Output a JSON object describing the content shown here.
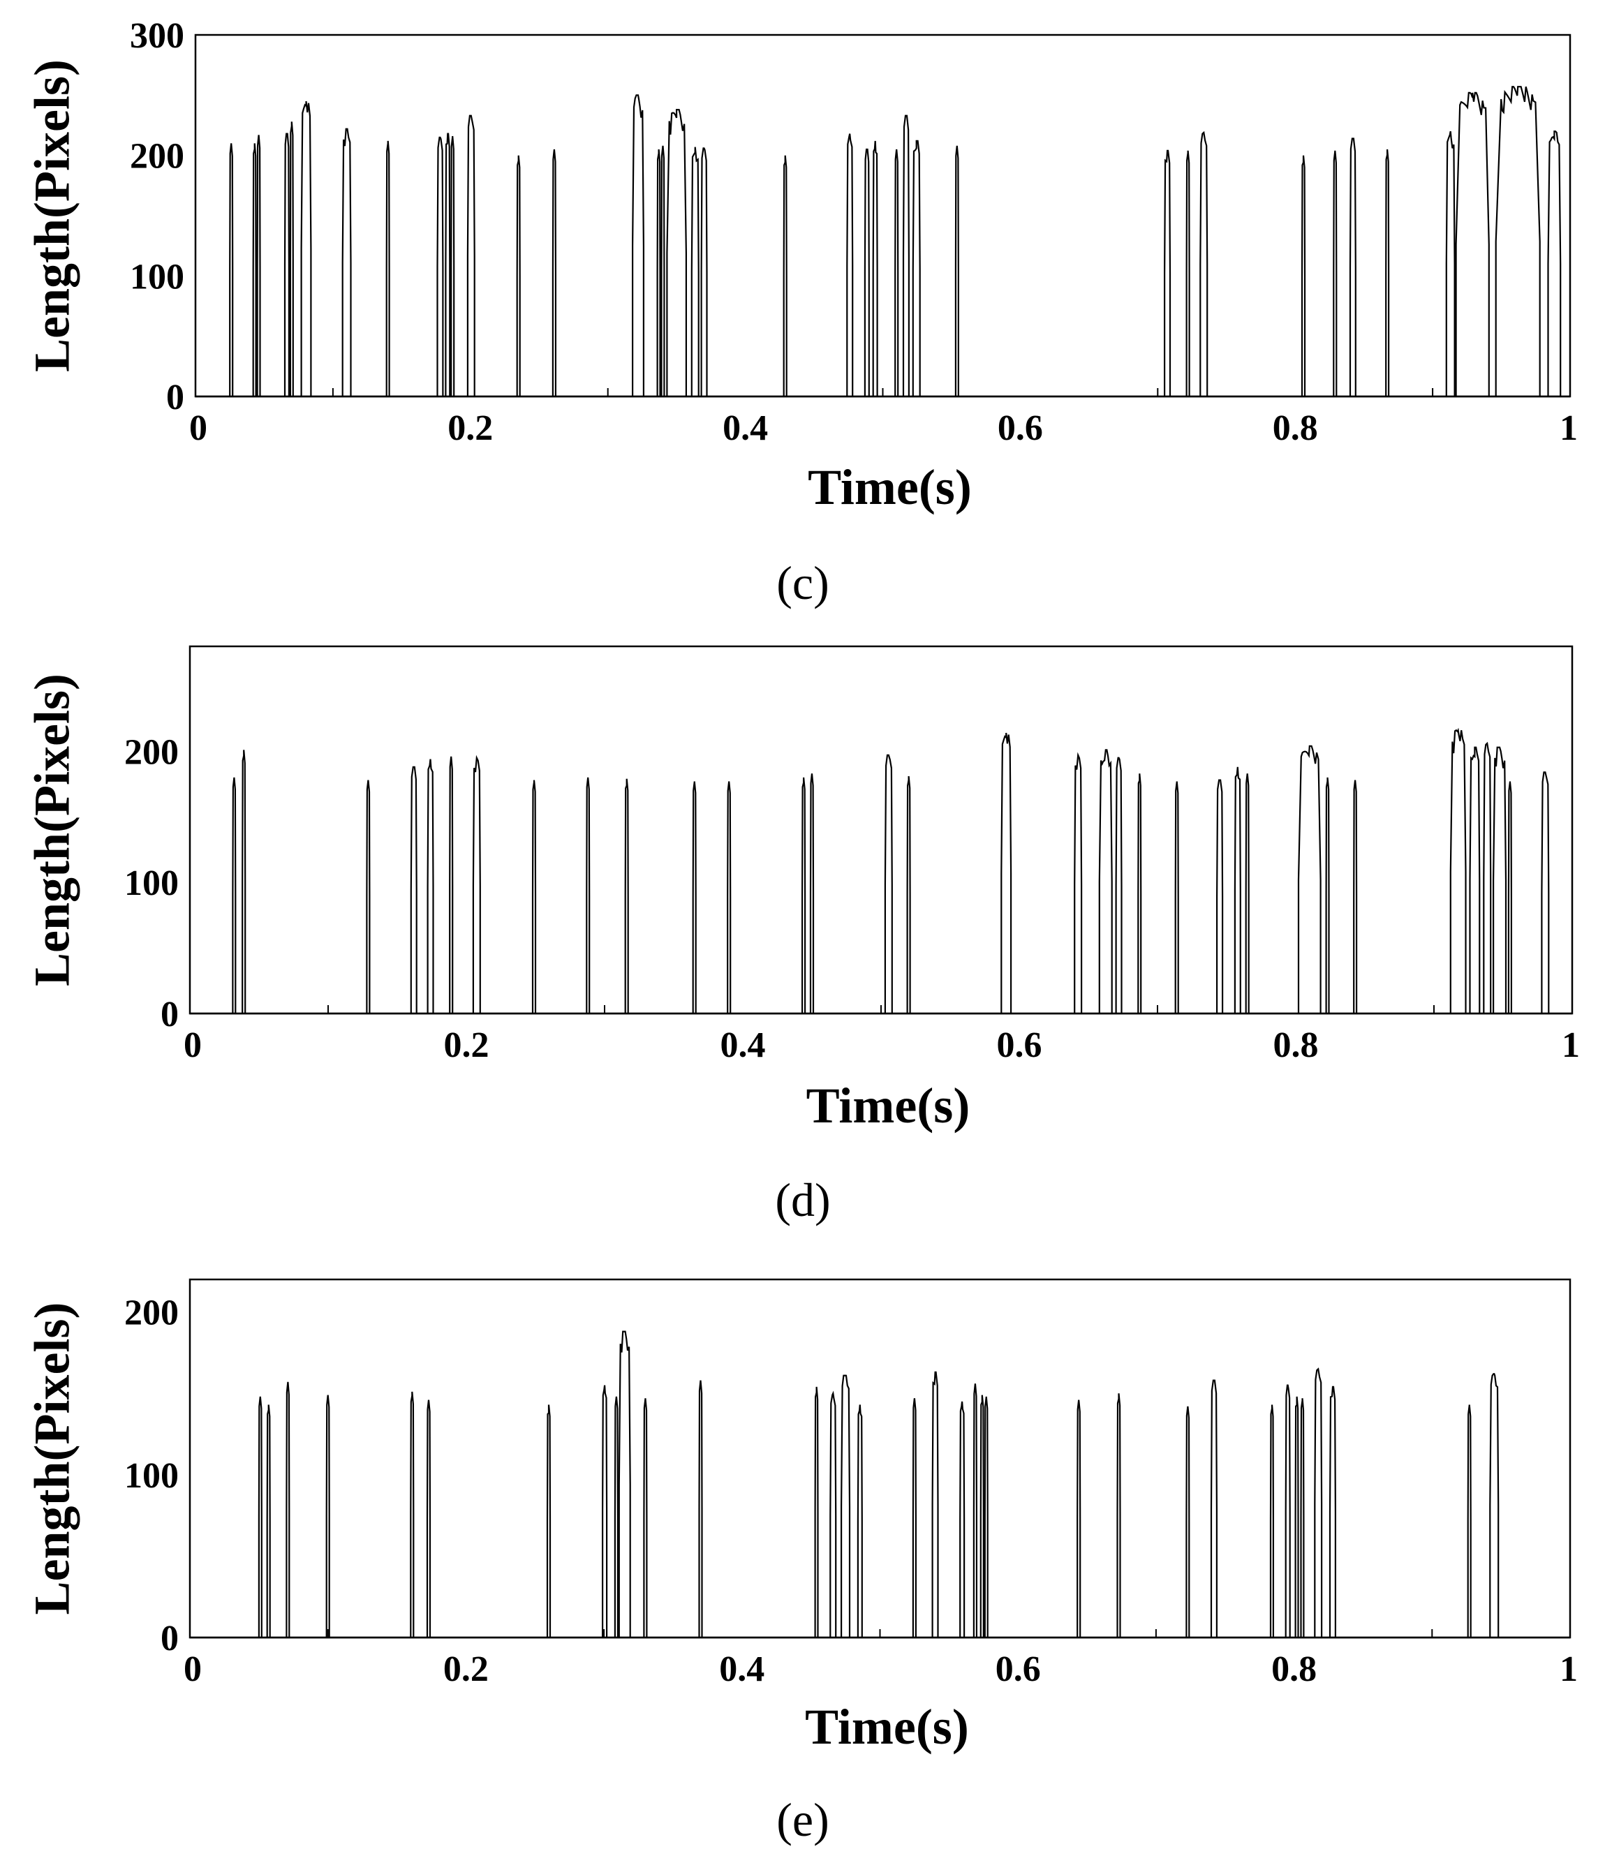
{
  "chart_data": [
    {
      "type": "line",
      "panel": "c",
      "caption": "(c)",
      "xlabel": "Time(s)",
      "ylabel": "Length(Pixels)",
      "xlim": [
        0,
        1
      ],
      "ylim": [
        0,
        300
      ],
      "xticks": [
        0,
        0.2,
        0.4,
        0.6,
        0.8,
        1
      ],
      "xtick_labels": [
        "0",
        "0.2",
        "0.4",
        "0.6",
        "0.8",
        "1"
      ],
      "yticks": [
        0,
        100,
        200,
        300
      ],
      "ytick_labels": [
        "0",
        "100",
        "200",
        "300"
      ],
      "series": [
        {
          "name": "length",
          "spikes": [
            [
              0.025,
              0.027,
              210
            ],
            [
              0.042,
              0.044,
              210
            ],
            [
              0.045,
              0.047,
              217
            ],
            [
              0.065,
              0.068,
              218
            ],
            [
              0.069,
              0.071,
              228
            ],
            [
              0.077,
              0.084,
              245
            ],
            [
              0.107,
              0.113,
              222
            ],
            [
              0.139,
              0.141,
              212
            ],
            [
              0.176,
              0.18,
              215
            ],
            [
              0.182,
              0.185,
              218
            ],
            [
              0.186,
              0.188,
              216
            ],
            [
              0.198,
              0.203,
              233
            ],
            [
              0.234,
              0.236,
              200
            ],
            [
              0.26,
              0.262,
              205
            ],
            [
              0.318,
              0.326,
              250
            ],
            [
              0.336,
              0.338,
              205
            ],
            [
              0.339,
              0.341,
              208
            ],
            [
              0.343,
              0.357,
              238
            ],
            [
              0.361,
              0.366,
              207
            ],
            [
              0.368,
              0.372,
              206
            ],
            [
              0.428,
              0.43,
              200
            ],
            [
              0.474,
              0.478,
              218
            ],
            [
              0.487,
              0.49,
              205
            ],
            [
              0.493,
              0.496,
              212
            ],
            [
              0.509,
              0.511,
              205
            ],
            [
              0.515,
              0.519,
              233
            ],
            [
              0.522,
              0.527,
              212
            ],
            [
              0.553,
              0.555,
              208
            ],
            [
              0.705,
              0.709,
              204
            ],
            [
              0.721,
              0.723,
              204
            ],
            [
              0.731,
              0.736,
              219
            ],
            [
              0.805,
              0.807,
              200
            ],
            [
              0.828,
              0.83,
              204
            ],
            [
              0.84,
              0.844,
              214
            ],
            [
              0.866,
              0.868,
              205
            ],
            [
              0.91,
              0.916,
              220
            ],
            [
              0.917,
              0.941,
              252
            ],
            [
              0.946,
              0.978,
              257
            ],
            [
              0.984,
              0.993,
              220
            ]
          ]
        }
      ]
    },
    {
      "type": "line",
      "panel": "d",
      "caption": "(d)",
      "xlabel": "Time(s)",
      "ylabel": "Length(Pixels)",
      "xlim": [
        0,
        1
      ],
      "ylim": [
        0,
        280
      ],
      "xticks": [
        0,
        0.2,
        0.4,
        0.6,
        0.8,
        1
      ],
      "xtick_labels": [
        "0",
        "0.2",
        "0.4",
        "0.6",
        "0.8",
        "1"
      ],
      "yticks": [
        0,
        100,
        200
      ],
      "ytick_labels": [
        "0",
        "100",
        "200"
      ],
      "series": [
        {
          "name": "length",
          "spikes": [
            [
              0.031,
              0.033,
              180
            ],
            [
              0.038,
              0.04,
              201
            ],
            [
              0.128,
              0.13,
              178
            ],
            [
              0.16,
              0.164,
              188
            ],
            [
              0.172,
              0.176,
              194
            ],
            [
              0.188,
              0.19,
              196
            ],
            [
              0.205,
              0.21,
              195
            ],
            [
              0.248,
              0.25,
              178
            ],
            [
              0.287,
              0.289,
              180
            ],
            [
              0.315,
              0.317,
              179
            ],
            [
              0.364,
              0.366,
              177
            ],
            [
              0.389,
              0.391,
              177
            ],
            [
              0.443,
              0.445,
              180
            ],
            [
              0.449,
              0.451,
              183
            ],
            [
              0.503,
              0.508,
              197
            ],
            [
              0.519,
              0.521,
              181
            ],
            [
              0.587,
              0.594,
              214
            ],
            [
              0.64,
              0.645,
              197
            ],
            [
              0.658,
              0.667,
              201
            ],
            [
              0.67,
              0.674,
              195
            ],
            [
              0.686,
              0.688,
              183
            ],
            [
              0.713,
              0.715,
              177
            ],
            [
              0.743,
              0.747,
              178
            ],
            [
              0.756,
              0.76,
              188
            ],
            [
              0.764,
              0.766,
              183
            ],
            [
              0.802,
              0.818,
              204
            ],
            [
              0.822,
              0.824,
              180
            ],
            [
              0.842,
              0.844,
              178
            ],
            [
              0.912,
              0.923,
              216
            ],
            [
              0.926,
              0.933,
              203
            ],
            [
              0.936,
              0.941,
              206
            ],
            [
              0.943,
              0.952,
              203
            ],
            [
              0.954,
              0.956,
              177
            ],
            [
              0.978,
              0.983,
              184
            ]
          ]
        }
      ]
    },
    {
      "type": "line",
      "panel": "e",
      "caption": "(e)",
      "xlabel": "Time(s)",
      "ylabel": "Length(Pixels)",
      "xlim": [
        0,
        1
      ],
      "ylim": [
        0,
        220
      ],
      "xticks": [
        0,
        0.2,
        0.4,
        0.6,
        0.8,
        1
      ],
      "xtick_labels": [
        "0",
        "0.2",
        "0.4",
        "0.6",
        "0.8",
        "1"
      ],
      "yticks": [
        0,
        100,
        200
      ],
      "ytick_labels": [
        "0",
        "100",
        "200"
      ],
      "series": [
        {
          "name": "length",
          "spikes": [
            [
              0.05,
              0.052,
              148
            ],
            [
              0.056,
              0.058,
              143
            ],
            [
              0.07,
              0.072,
              157
            ],
            [
              0.099,
              0.101,
              149
            ],
            [
              0.16,
              0.162,
              151
            ],
            [
              0.172,
              0.174,
              146
            ],
            [
              0.259,
              0.261,
              143
            ],
            [
              0.299,
              0.302,
              155
            ],
            [
              0.308,
              0.31,
              148
            ],
            [
              0.311,
              0.319,
              188
            ],
            [
              0.329,
              0.331,
              147
            ],
            [
              0.369,
              0.371,
              158
            ],
            [
              0.453,
              0.455,
              154
            ],
            [
              0.464,
              0.468,
              150
            ],
            [
              0.472,
              0.478,
              161
            ],
            [
              0.484,
              0.487,
              143
            ],
            [
              0.524,
              0.526,
              147
            ],
            [
              0.538,
              0.542,
              163
            ],
            [
              0.558,
              0.561,
              145
            ],
            [
              0.568,
              0.57,
              156
            ],
            [
              0.573,
              0.575,
              149
            ],
            [
              0.576,
              0.578,
              148
            ],
            [
              0.643,
              0.645,
              146
            ],
            [
              0.672,
              0.674,
              150
            ],
            [
              0.722,
              0.724,
              142
            ],
            [
              0.74,
              0.744,
              158
            ],
            [
              0.783,
              0.785,
              143
            ],
            [
              0.794,
              0.797,
              155
            ],
            [
              0.801,
              0.803,
              148
            ],
            [
              0.805,
              0.807,
              147
            ],
            [
              0.815,
              0.82,
              165
            ],
            [
              0.826,
              0.83,
              154
            ],
            [
              0.926,
              0.928,
              143
            ],
            [
              0.942,
              0.948,
              162
            ]
          ]
        }
      ]
    }
  ]
}
